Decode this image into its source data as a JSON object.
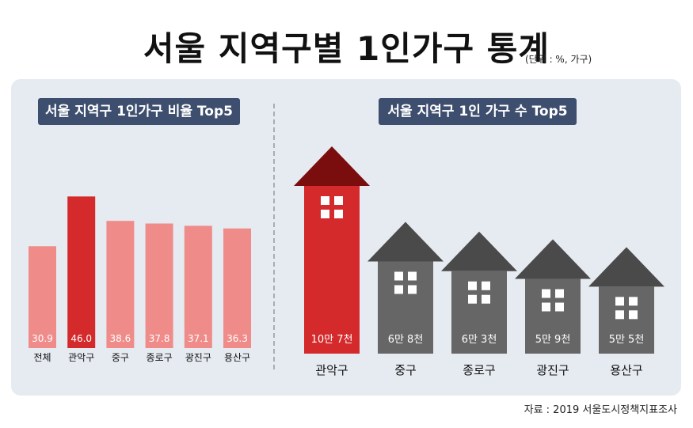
{
  "title": "서울 지역구별 1인가구 통계",
  "unit": "(단위 : %, 가구)",
  "source": "자료 : 2019 서울도시정책지표조사",
  "colors": {
    "panel": "#e6ebf2",
    "header_pill": "#3e4e6e",
    "highlight": "#d42a2b",
    "bar": "#ef8c8a",
    "house_gray": "#666666",
    "roof_gray": "#4a4a4a",
    "roof_red": "#7a0d0d"
  },
  "left_chart": {
    "header": "서울 지역구 1인가구 비율 Top5"
  },
  "right_chart": {
    "header": "서울 지역구 1인 가구 수 Top5"
  },
  "chart_data": [
    {
      "type": "bar",
      "title": "서울 지역구 1인가구 비율 Top5",
      "categories": [
        "전체",
        "관악구",
        "중구",
        "종로구",
        "광진구",
        "용산구"
      ],
      "values": [
        30.9,
        46.0,
        38.6,
        37.8,
        37.1,
        36.3
      ],
      "value_labels": [
        "30.9",
        "46.0",
        "38.6",
        "37.8",
        "37.1",
        "36.3"
      ],
      "highlight_index": 1,
      "ylim": [
        0,
        48
      ],
      "grid": false
    },
    {
      "type": "bar",
      "title": "서울 지역구 1인 가구 수 Top5",
      "categories": [
        "관악구",
        "중구",
        "종로구",
        "광진구",
        "용산구"
      ],
      "values": [
        107000,
        68000,
        63000,
        59000,
        55000
      ],
      "value_labels": [
        "10만 7천",
        "6만 8천",
        "6만 3천",
        "5만 9천",
        "5만 5천"
      ],
      "highlight_index": 0,
      "grid": false
    }
  ]
}
